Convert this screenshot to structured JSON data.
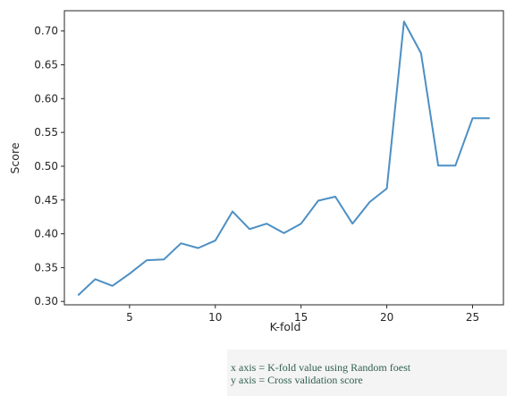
{
  "chart_data": {
    "type": "line",
    "title": "",
    "xlabel": "K-fold",
    "ylabel": "Score",
    "xlim": [
      1.2,
      26.8
    ],
    "ylim": [
      0.295,
      0.73
    ],
    "xticks": [
      5,
      10,
      15,
      20,
      25
    ],
    "yticks": [
      0.3,
      0.35,
      0.4,
      0.45,
      0.5,
      0.55,
      0.6,
      0.65,
      0.7
    ],
    "grid": false,
    "line_color": "#4c8fc4",
    "x": [
      2,
      3,
      4,
      5,
      6,
      7,
      8,
      9,
      10,
      11,
      12,
      13,
      14,
      15,
      16,
      17,
      18,
      19,
      20,
      21,
      22,
      23,
      24,
      25,
      26
    ],
    "y": [
      0.309,
      0.333,
      0.323,
      0.341,
      0.361,
      0.362,
      0.386,
      0.379,
      0.39,
      0.433,
      0.407,
      0.415,
      0.401,
      0.415,
      0.449,
      0.455,
      0.415,
      0.447,
      0.467,
      0.714,
      0.667,
      0.501,
      0.501,
      0.571,
      0.571
    ]
  },
  "caption": {
    "line1": "x axis = K-fold value using Random foest",
    "line2": "y axis = Cross validation score"
  }
}
